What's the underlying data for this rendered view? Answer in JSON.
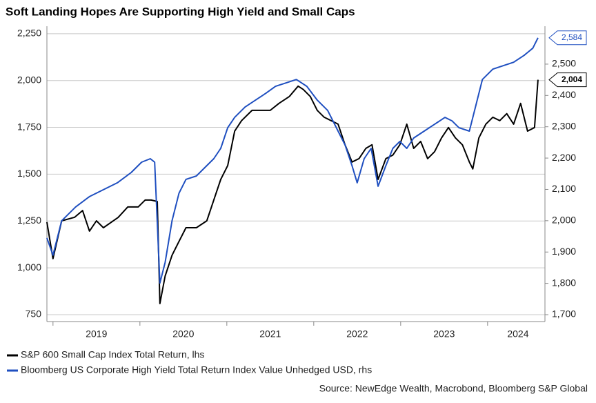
{
  "chart_data": {
    "type": "line",
    "title": "Soft Landing Hopes Are Supporting High Yield and Small Caps",
    "source": "Source: NewEdge Wealth, Macrobond, Bloomberg S&P Global",
    "xlim": [
      2018.93,
      2024.66
    ],
    "xticks": [
      {
        "value": 2019.5,
        "label": "2019"
      },
      {
        "value": 2020.5,
        "label": "2020"
      },
      {
        "value": 2021.5,
        "label": "2021"
      },
      {
        "value": 2022.5,
        "label": "2022"
      },
      {
        "value": 2023.5,
        "label": "2023"
      },
      {
        "value": 2024.35,
        "label": "2024"
      }
    ],
    "xminorticks": [
      2019,
      2020,
      2021,
      2022,
      2023,
      2024
    ],
    "ylim": [
      713,
      2290
    ],
    "yticks": [
      750,
      {
        "value": 1000,
        "label": "1,000"
      },
      {
        "value": 1250,
        "label": "1,250"
      },
      {
        "value": 1500,
        "label": "1,500"
      },
      {
        "value": 1750,
        "label": "1,750"
      },
      {
        "value": 2000,
        "label": "2,000"
      },
      {
        "value": 2250,
        "label": "2,250"
      }
    ],
    "y2lim": [
      1678,
      2621
    ],
    "y2ticks": [
      {
        "value": 1700,
        "label": "1,700"
      },
      {
        "value": 1800,
        "label": "1,800"
      },
      {
        "value": 1900,
        "label": "1,900"
      },
      {
        "value": 2000,
        "label": "2,000"
      },
      {
        "value": 2100,
        "label": "2,100"
      },
      {
        "value": 2200,
        "label": "2,200"
      },
      {
        "value": 2300,
        "label": "2,300"
      },
      {
        "value": 2400,
        "label": "2,400"
      },
      {
        "value": 2500,
        "label": "2,500"
      }
    ],
    "grid": true,
    "series": [
      {
        "name": "S&P 600 Small Cap Index Total Return, lhs",
        "color": "#000000",
        "axis": "y",
        "x": [
          2018.93,
          2019.0,
          2019.1,
          2019.25,
          2019.34,
          2019.42,
          2019.5,
          2019.58,
          2019.75,
          2019.86,
          2019.98,
          2020.06,
          2020.13,
          2020.2,
          2020.23,
          2020.29,
          2020.37,
          2020.45,
          2020.53,
          2020.65,
          2020.77,
          2020.85,
          2020.93,
          2021.01,
          2021.09,
          2021.17,
          2021.29,
          2021.4,
          2021.5,
          2021.6,
          2021.72,
          2021.82,
          2021.88,
          2021.96,
          2022.04,
          2022.12,
          2022.2,
          2022.28,
          2022.36,
          2022.44,
          2022.52,
          2022.6,
          2022.67,
          2022.74,
          2022.83,
          2022.91,
          2022.99,
          2023.07,
          2023.15,
          2023.23,
          2023.31,
          2023.39,
          2023.47,
          2023.55,
          2023.63,
          2023.71,
          2023.79,
          2023.83,
          2023.9,
          2023.98,
          2024.06,
          2024.14,
          2024.22,
          2024.3,
          2024.38,
          2024.46,
          2024.54,
          2024.58
        ],
        "values": [
          1244,
          1049,
          1251,
          1270,
          1306,
          1196,
          1251,
          1214,
          1269,
          1325,
          1325,
          1362,
          1362,
          1354,
          809,
          956,
          1067,
          1141,
          1214,
          1214,
          1251,
          1362,
          1472,
          1546,
          1730,
          1786,
          1841,
          1841,
          1841,
          1878,
          1915,
          1970,
          1952,
          1915,
          1841,
          1804,
          1786,
          1767,
          1657,
          1565,
          1583,
          1638,
          1657,
          1472,
          1583,
          1602,
          1657,
          1767,
          1638,
          1675,
          1583,
          1620,
          1694,
          1749,
          1694,
          1657,
          1565,
          1528,
          1694,
          1767,
          1804,
          1786,
          1823,
          1767,
          1878,
          1730,
          1749,
          2004
        ],
        "value_labels": [
          null,
          null,
          null,
          null,
          null,
          null,
          null,
          null,
          null,
          null,
          null,
          null,
          null,
          null,
          null,
          null,
          null,
          null,
          null,
          null,
          null,
          null,
          null,
          null,
          null,
          null,
          null,
          null,
          null,
          null,
          null,
          null,
          null,
          null,
          null,
          null,
          null,
          null,
          null,
          null,
          null,
          null,
          null,
          null,
          null,
          null,
          null,
          null,
          null,
          null,
          null,
          null,
          null,
          null,
          null,
          null,
          null,
          null,
          null,
          null,
          null,
          null,
          null,
          null,
          null,
          null,
          null,
          "2,004"
        ]
      },
      {
        "name": "Bloomberg US Corporate High Yield Total Return Index Value Unhedged USD, rhs",
        "color": "#1f4fc0",
        "axis": "y2",
        "x": [
          2018.93,
          2019.0,
          2019.1,
          2019.26,
          2019.42,
          2019.58,
          2019.74,
          2019.9,
          2020.02,
          2020.12,
          2020.17,
          2020.23,
          2020.29,
          2020.37,
          2020.45,
          2020.53,
          2020.65,
          2020.77,
          2020.85,
          2020.93,
          2021.01,
          2021.09,
          2021.21,
          2021.33,
          2021.45,
          2021.56,
          2021.68,
          2021.8,
          2021.92,
          2022.04,
          2022.16,
          2022.28,
          2022.36,
          2022.44,
          2022.5,
          2022.58,
          2022.66,
          2022.74,
          2022.83,
          2022.91,
          2022.99,
          2023.07,
          2023.15,
          2023.27,
          2023.39,
          2023.51,
          2023.59,
          2023.67,
          2023.79,
          2023.87,
          2023.94,
          2024.06,
          2024.18,
          2024.3,
          2024.42,
          2024.52,
          2024.58
        ],
        "values": [
          1945,
          1890,
          2000,
          2044,
          2077,
          2099,
          2121,
          2154,
          2187,
          2198,
          2187,
          1801,
          1867,
          2000,
          2088,
          2132,
          2143,
          2176,
          2198,
          2231,
          2297,
          2330,
          2363,
          2385,
          2407,
          2429,
          2440,
          2451,
          2429,
          2385,
          2352,
          2286,
          2242,
          2176,
          2121,
          2198,
          2231,
          2110,
          2176,
          2231,
          2253,
          2231,
          2264,
          2286,
          2308,
          2330,
          2319,
          2297,
          2286,
          2374,
          2451,
          2484,
          2495,
          2506,
          2528,
          2551,
          2584
        ],
        "value_labels": [
          null,
          null,
          null,
          null,
          null,
          null,
          null,
          null,
          null,
          null,
          null,
          null,
          null,
          null,
          null,
          null,
          null,
          null,
          null,
          null,
          null,
          null,
          null,
          null,
          null,
          null,
          null,
          null,
          null,
          null,
          null,
          null,
          null,
          null,
          null,
          null,
          null,
          null,
          null,
          null,
          null,
          null,
          null,
          null,
          null,
          null,
          null,
          null,
          null,
          null,
          null,
          null,
          null,
          null,
          null,
          null,
          "2,584"
        ]
      }
    ]
  }
}
